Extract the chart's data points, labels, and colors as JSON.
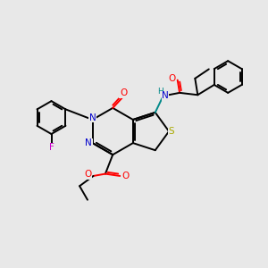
{
  "background_color": "#e8e8e8",
  "atom_colors": {
    "C": "#000000",
    "N": "#0000cc",
    "O": "#ff0000",
    "S": "#aaaa00",
    "F": "#cc00cc",
    "H": "#008888"
  },
  "bond_color": "#000000",
  "lw": 1.4
}
